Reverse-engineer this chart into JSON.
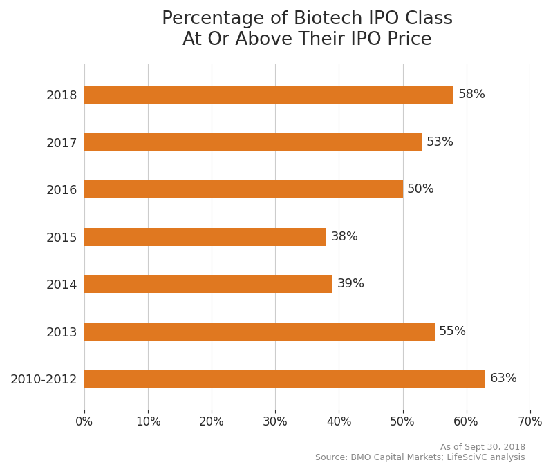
{
  "title": "Percentage of Biotech IPO Class\nAt Or Above Their IPO Price",
  "categories": [
    "2018",
    "2017",
    "2016",
    "2015",
    "2014",
    "2013",
    "2010-2012"
  ],
  "values": [
    58,
    53,
    50,
    38,
    39,
    55,
    63
  ],
  "bar_color": "#E07820",
  "bar_height": 0.38,
  "xlim": [
    0,
    70
  ],
  "xticks": [
    0,
    10,
    20,
    30,
    40,
    50,
    60,
    70
  ],
  "title_fontsize": 19,
  "label_fontsize": 13,
  "tick_fontsize": 12,
  "value_label_fontsize": 13,
  "annotation_text": "As of Sept 30, 2018\nSource: BMO Capital Markets; LifeSciVC analysis",
  "annotation_fontsize": 9,
  "bg_color": "#ffffff",
  "grid_color": "#cccccc",
  "text_color": "#2a2a2a"
}
